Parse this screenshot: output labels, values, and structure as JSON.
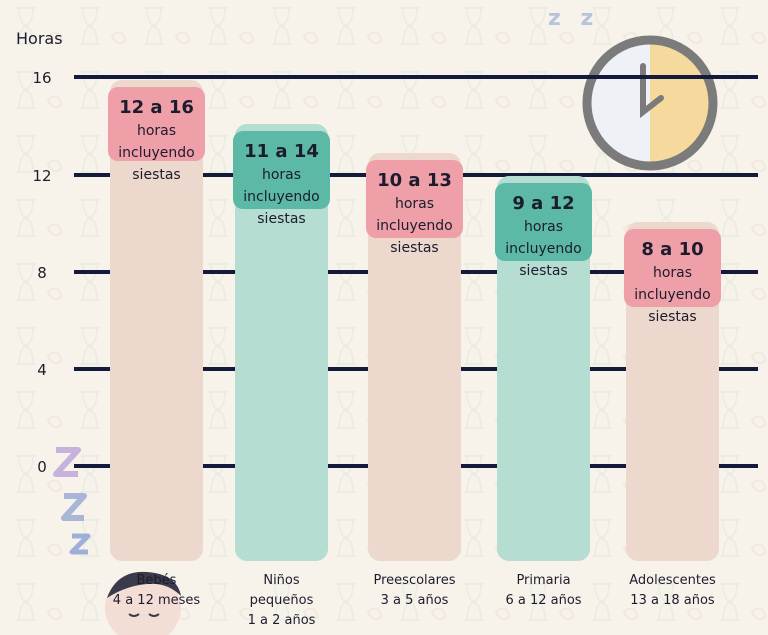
{
  "chart_data": {
    "type": "bar",
    "ylabel": "Horas",
    "yticks": [
      16,
      12,
      8,
      4,
      0
    ],
    "ylim": [
      0,
      16
    ],
    "grid": true,
    "categories": [
      {
        "name": "Bebés",
        "sub": "4 a 12 meses"
      },
      {
        "name": "Niños pequeños",
        "sub": "1 a 2 años"
      },
      {
        "name": "Preescolares",
        "sub": "3 a 5 años"
      },
      {
        "name": "Primaria",
        "sub": "6 a 12 años"
      },
      {
        "name": "Adolescentes",
        "sub": "13 a 18 años"
      }
    ],
    "ranges": [
      {
        "min": 12,
        "max": 16,
        "label_range": "12 a 16",
        "label_text": "horas incluyendo siestas"
      },
      {
        "min": 11,
        "max": 14,
        "label_range": "11 a 14",
        "label_text": "horas incluyendo siestas"
      },
      {
        "min": 10,
        "max": 13,
        "label_range": "10 a 13",
        "label_text": "horas incluyendo siestas"
      },
      {
        "min": 9,
        "max": 12,
        "label_range": "9 a 12",
        "label_text": "horas incluyendo siestas"
      },
      {
        "min": 8,
        "max": 10,
        "label_range": "8 a 10",
        "label_text": "horas incluyendo siestas"
      }
    ],
    "colors": {
      "bar_pink": "#ecd8cc",
      "bar_teal": "#b6ddd2",
      "label_pink": "#ee9fa8",
      "label_teal": "#5bb9a6",
      "gridline": "#141a3c"
    }
  }
}
